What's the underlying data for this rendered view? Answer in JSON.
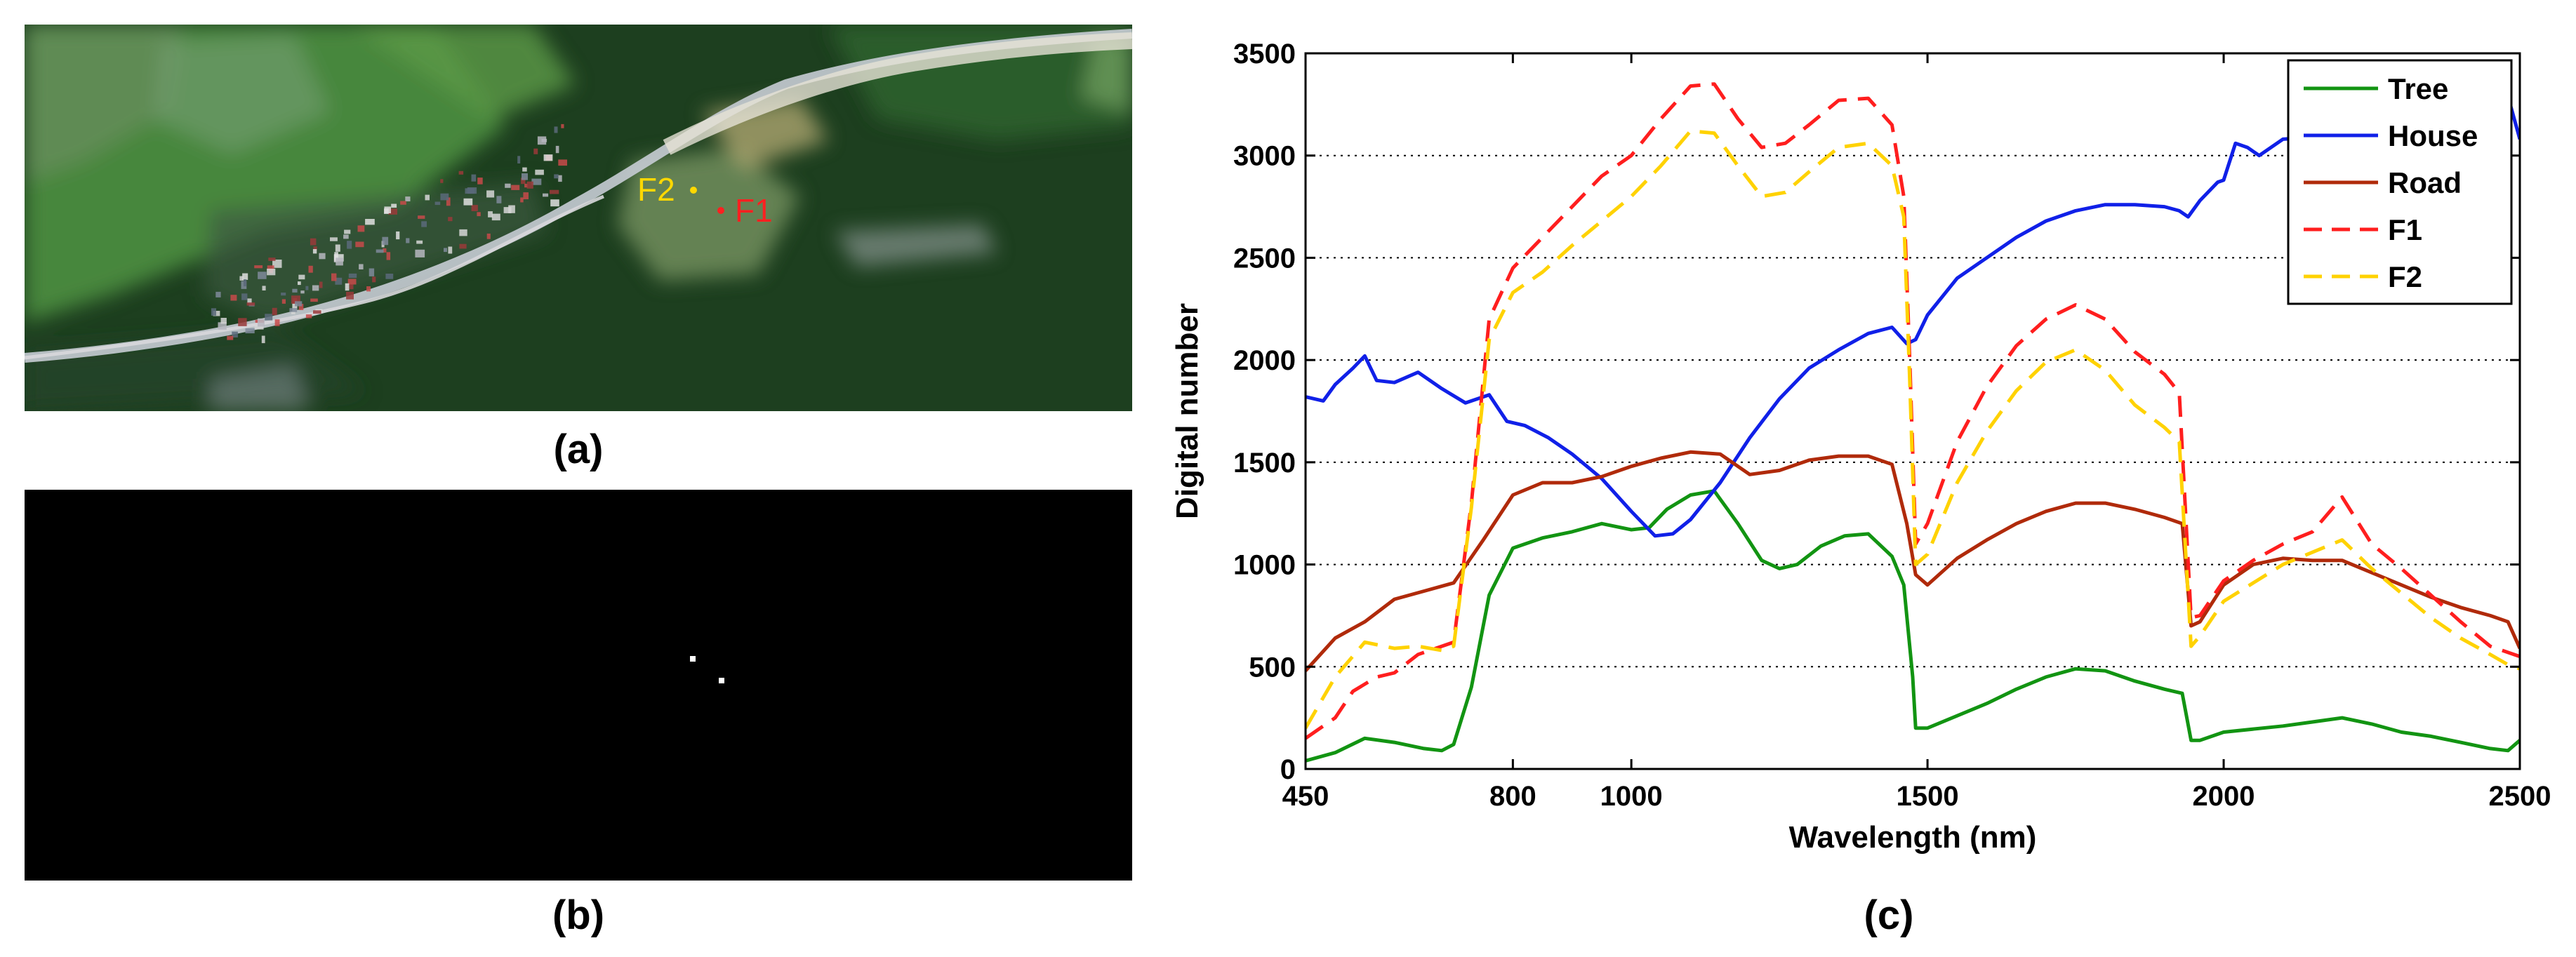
{
  "panels": {
    "a": {
      "label": "(a)",
      "markers": [
        {
          "name": "F2",
          "color": "#ffd800"
        },
        {
          "name": "F1",
          "color": "#ff2020"
        }
      ]
    },
    "b": {
      "label": "(b)"
    },
    "c": {
      "label": "(c)"
    }
  },
  "colors": {
    "tree": "#129412",
    "house": "#1020e8",
    "road": "#b02a0a",
    "f1": "#ff1e1e",
    "f2": "#ffd200",
    "forest": "#1d3f1f",
    "grass": "#3c7a34",
    "river": "#c9cfd6",
    "black": "#000000"
  },
  "chart_data": {
    "type": "line",
    "title": "",
    "xlabel": "Wavelength (nm)",
    "ylabel": "Digital number",
    "xlim": [
      450,
      2500
    ],
    "ylim": [
      0,
      3500
    ],
    "xticks": [
      450,
      800,
      1000,
      1500,
      2000,
      2500
    ],
    "yticks": [
      0,
      500,
      1000,
      1500,
      2000,
      2500,
      3000,
      3500
    ],
    "grid": "horizontal dotted",
    "legend_position": "top-right",
    "series": [
      {
        "name": "Tree",
        "color_key": "tree",
        "dash": "solid",
        "points": [
          [
            450,
            40
          ],
          [
            500,
            80
          ],
          [
            550,
            150
          ],
          [
            600,
            130
          ],
          [
            650,
            100
          ],
          [
            680,
            90
          ],
          [
            700,
            120
          ],
          [
            730,
            400
          ],
          [
            760,
            850
          ],
          [
            800,
            1080
          ],
          [
            850,
            1130
          ],
          [
            900,
            1160
          ],
          [
            950,
            1200
          ],
          [
            1000,
            1170
          ],
          [
            1030,
            1180
          ],
          [
            1060,
            1270
          ],
          [
            1100,
            1340
          ],
          [
            1140,
            1360
          ],
          [
            1180,
            1200
          ],
          [
            1220,
            1020
          ],
          [
            1250,
            980
          ],
          [
            1280,
            1000
          ],
          [
            1320,
            1090
          ],
          [
            1360,
            1140
          ],
          [
            1400,
            1150
          ],
          [
            1440,
            1040
          ],
          [
            1460,
            900
          ],
          [
            1475,
            450
          ],
          [
            1480,
            200
          ],
          [
            1500,
            200
          ],
          [
            1550,
            260
          ],
          [
            1600,
            320
          ],
          [
            1650,
            390
          ],
          [
            1700,
            450
          ],
          [
            1750,
            490
          ],
          [
            1800,
            480
          ],
          [
            1850,
            430
          ],
          [
            1900,
            390
          ],
          [
            1930,
            370
          ],
          [
            1945,
            140
          ],
          [
            1960,
            140
          ],
          [
            2000,
            180
          ],
          [
            2100,
            210
          ],
          [
            2150,
            230
          ],
          [
            2200,
            250
          ],
          [
            2250,
            220
          ],
          [
            2300,
            180
          ],
          [
            2350,
            160
          ],
          [
            2400,
            130
          ],
          [
            2450,
            100
          ],
          [
            2480,
            90
          ],
          [
            2500,
            140
          ]
        ]
      },
      {
        "name": "House",
        "color_key": "house",
        "dash": "solid",
        "points": [
          [
            450,
            1820
          ],
          [
            480,
            1800
          ],
          [
            500,
            1880
          ],
          [
            530,
            1960
          ],
          [
            550,
            2020
          ],
          [
            570,
            1900
          ],
          [
            600,
            1890
          ],
          [
            640,
            1940
          ],
          [
            680,
            1860
          ],
          [
            720,
            1790
          ],
          [
            760,
            1830
          ],
          [
            790,
            1700
          ],
          [
            820,
            1680
          ],
          [
            860,
            1620
          ],
          [
            900,
            1540
          ],
          [
            950,
            1420
          ],
          [
            1000,
            1260
          ],
          [
            1040,
            1140
          ],
          [
            1070,
            1150
          ],
          [
            1100,
            1220
          ],
          [
            1150,
            1400
          ],
          [
            1200,
            1620
          ],
          [
            1250,
            1810
          ],
          [
            1300,
            1960
          ],
          [
            1350,
            2050
          ],
          [
            1400,
            2130
          ],
          [
            1440,
            2160
          ],
          [
            1465,
            2080
          ],
          [
            1480,
            2100
          ],
          [
            1500,
            2220
          ],
          [
            1550,
            2400
          ],
          [
            1600,
            2500
          ],
          [
            1650,
            2600
          ],
          [
            1700,
            2680
          ],
          [
            1750,
            2730
          ],
          [
            1800,
            2760
          ],
          [
            1850,
            2760
          ],
          [
            1900,
            2750
          ],
          [
            1925,
            2730
          ],
          [
            1940,
            2700
          ],
          [
            1960,
            2780
          ],
          [
            1990,
            2870
          ],
          [
            2000,
            2880
          ],
          [
            2020,
            3060
          ],
          [
            2040,
            3040
          ],
          [
            2060,
            3000
          ],
          [
            2100,
            3080
          ],
          [
            2150,
            3090
          ],
          [
            2200,
            3150
          ],
          [
            2250,
            3190
          ],
          [
            2300,
            3170
          ],
          [
            2350,
            3230
          ],
          [
            2400,
            3170
          ],
          [
            2450,
            3210
          ],
          [
            2480,
            3290
          ],
          [
            2500,
            3080
          ]
        ]
      },
      {
        "name": "Road",
        "color_key": "road",
        "dash": "solid",
        "points": [
          [
            450,
            480
          ],
          [
            500,
            640
          ],
          [
            550,
            720
          ],
          [
            600,
            830
          ],
          [
            650,
            870
          ],
          [
            700,
            910
          ],
          [
            750,
            1120
          ],
          [
            800,
            1340
          ],
          [
            850,
            1400
          ],
          [
            900,
            1400
          ],
          [
            950,
            1430
          ],
          [
            1000,
            1480
          ],
          [
            1050,
            1520
          ],
          [
            1100,
            1550
          ],
          [
            1150,
            1540
          ],
          [
            1200,
            1440
          ],
          [
            1250,
            1460
          ],
          [
            1300,
            1510
          ],
          [
            1350,
            1530
          ],
          [
            1400,
            1530
          ],
          [
            1440,
            1490
          ],
          [
            1465,
            1200
          ],
          [
            1480,
            950
          ],
          [
            1500,
            900
          ],
          [
            1550,
            1030
          ],
          [
            1600,
            1120
          ],
          [
            1650,
            1200
          ],
          [
            1700,
            1260
          ],
          [
            1750,
            1300
          ],
          [
            1800,
            1300
          ],
          [
            1850,
            1270
          ],
          [
            1900,
            1230
          ],
          [
            1930,
            1200
          ],
          [
            1945,
            700
          ],
          [
            1960,
            720
          ],
          [
            2000,
            900
          ],
          [
            2050,
            1000
          ],
          [
            2100,
            1030
          ],
          [
            2150,
            1020
          ],
          [
            2200,
            1020
          ],
          [
            2250,
            960
          ],
          [
            2300,
            900
          ],
          [
            2350,
            840
          ],
          [
            2400,
            790
          ],
          [
            2450,
            750
          ],
          [
            2480,
            720
          ],
          [
            2500,
            590
          ]
        ]
      },
      {
        "name": "F1",
        "color_key": "f1",
        "dash": "dashed",
        "points": [
          [
            450,
            150
          ],
          [
            500,
            250
          ],
          [
            530,
            380
          ],
          [
            570,
            450
          ],
          [
            600,
            470
          ],
          [
            640,
            560
          ],
          [
            680,
            600
          ],
          [
            700,
            620
          ],
          [
            730,
            1300
          ],
          [
            760,
            2200
          ],
          [
            800,
            2450
          ],
          [
            850,
            2600
          ],
          [
            900,
            2750
          ],
          [
            950,
            2900
          ],
          [
            1000,
            3000
          ],
          [
            1050,
            3180
          ],
          [
            1100,
            3340
          ],
          [
            1140,
            3350
          ],
          [
            1180,
            3180
          ],
          [
            1220,
            3040
          ],
          [
            1260,
            3060
          ],
          [
            1300,
            3150
          ],
          [
            1350,
            3270
          ],
          [
            1400,
            3280
          ],
          [
            1440,
            3150
          ],
          [
            1460,
            2800
          ],
          [
            1470,
            2000
          ],
          [
            1480,
            1100
          ],
          [
            1500,
            1200
          ],
          [
            1550,
            1600
          ],
          [
            1600,
            1870
          ],
          [
            1650,
            2070
          ],
          [
            1700,
            2200
          ],
          [
            1750,
            2270
          ],
          [
            1800,
            2200
          ],
          [
            1850,
            2040
          ],
          [
            1900,
            1930
          ],
          [
            1925,
            1840
          ],
          [
            1945,
            740
          ],
          [
            1960,
            750
          ],
          [
            2000,
            920
          ],
          [
            2050,
            1020
          ],
          [
            2100,
            1100
          ],
          [
            2150,
            1160
          ],
          [
            2200,
            1330
          ],
          [
            2250,
            1100
          ],
          [
            2300,
            980
          ],
          [
            2350,
            850
          ],
          [
            2400,
            720
          ],
          [
            2450,
            600
          ],
          [
            2480,
            570
          ],
          [
            2500,
            550
          ]
        ]
      },
      {
        "name": "F2",
        "color_key": "f2",
        "dash": "dashed",
        "points": [
          [
            450,
            200
          ],
          [
            500,
            450
          ],
          [
            550,
            620
          ],
          [
            600,
            590
          ],
          [
            640,
            600
          ],
          [
            680,
            580
          ],
          [
            700,
            600
          ],
          [
            730,
            1280
          ],
          [
            760,
            2100
          ],
          [
            800,
            2330
          ],
          [
            850,
            2430
          ],
          [
            900,
            2560
          ],
          [
            950,
            2680
          ],
          [
            1000,
            2800
          ],
          [
            1050,
            2950
          ],
          [
            1100,
            3120
          ],
          [
            1140,
            3110
          ],
          [
            1180,
            2950
          ],
          [
            1220,
            2800
          ],
          [
            1260,
            2820
          ],
          [
            1300,
            2920
          ],
          [
            1350,
            3040
          ],
          [
            1400,
            3060
          ],
          [
            1440,
            2950
          ],
          [
            1460,
            2700
          ],
          [
            1470,
            1900
          ],
          [
            1480,
            1000
          ],
          [
            1500,
            1050
          ],
          [
            1550,
            1400
          ],
          [
            1600,
            1650
          ],
          [
            1650,
            1850
          ],
          [
            1700,
            1990
          ],
          [
            1750,
            2050
          ],
          [
            1800,
            1950
          ],
          [
            1850,
            1780
          ],
          [
            1900,
            1670
          ],
          [
            1925,
            1600
          ],
          [
            1945,
            600
          ],
          [
            1960,
            650
          ],
          [
            2000,
            820
          ],
          [
            2050,
            910
          ],
          [
            2100,
            1000
          ],
          [
            2150,
            1060
          ],
          [
            2200,
            1120
          ],
          [
            2250,
            980
          ],
          [
            2300,
            860
          ],
          [
            2350,
            740
          ],
          [
            2400,
            640
          ],
          [
            2450,
            560
          ],
          [
            2480,
            510
          ],
          [
            2500,
            490
          ]
        ]
      }
    ]
  }
}
